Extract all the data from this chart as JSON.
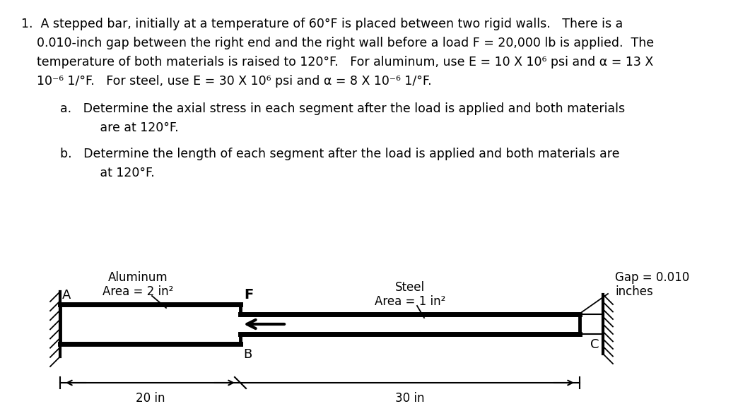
{
  "line1": "1.  A stepped bar, initially at a temperature of 60°F is placed between two rigid walls.   There is a",
  "line2": "    0.010-inch gap between the right end and the right wall before a load F = 20,000 lb is applied.  The",
  "line3": "    temperature of both materials is raised to 120°F.   For aluminum, use E = 10 X 10⁶ psi and α = 13 X",
  "line4": "    10⁻⁶ 1/°F.   For steel, use E = 30 X 10⁶ psi and α = 8 X 10⁻⁶ 1/°F.",
  "line_a1": "a.   Determine the axial stress in each segment after the load is applied and both materials",
  "line_a2": "       are at 120°F.",
  "line_b1": "b.   Determine the length of each segment after the load is applied and both materials are",
  "line_b2": "       at 120°F.",
  "label_aluminum": "Aluminum",
  "label_aluminum_area": "Area = 2 in²",
  "label_steel": "Steel",
  "label_steel_area": "Area = 1 in²",
  "label_gap": "Gap = 0.010",
  "label_gap2": "inches",
  "label_A": "A",
  "label_B": "B",
  "label_C": "C",
  "label_F": "F",
  "label_20in": "20 in",
  "label_30in": "30 in",
  "bg_color": "#ffffff",
  "line_color": "#000000",
  "fontsize_body": 12.5,
  "fontsize_diagram": 12.0
}
